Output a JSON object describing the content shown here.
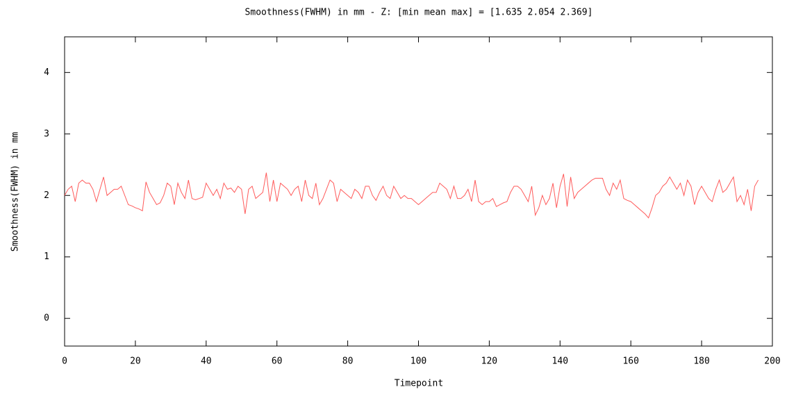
{
  "chart_data": {
    "type": "line",
    "title": "Smoothness(FWHM) in mm - Z: [min mean max] = [1.635 2.054 2.369]",
    "x_label": "Timepoint",
    "y_label": "Smoothness(FWHM) in mm",
    "xlim": [
      0,
      200
    ],
    "xticks": [
      0,
      20,
      40,
      60,
      80,
      100,
      120,
      140,
      160,
      180,
      200
    ],
    "ylim": [
      -0.45,
      4.58
    ],
    "yticks": [
      0,
      1,
      2,
      3,
      4
    ],
    "grid": false,
    "series": [
      {
        "name": "Z",
        "color": "#ff5a5a",
        "x": [
          0,
          1,
          2,
          3,
          4,
          5,
          6,
          7,
          8,
          9,
          10,
          11,
          12,
          13,
          14,
          15,
          16,
          17,
          18,
          19,
          20,
          21,
          22,
          23,
          24,
          25,
          26,
          27,
          28,
          29,
          30,
          31,
          32,
          33,
          34,
          35,
          36,
          37,
          38,
          39,
          40,
          41,
          42,
          43,
          44,
          45,
          46,
          47,
          48,
          49,
          50,
          51,
          52,
          53,
          54,
          55,
          56,
          57,
          58,
          59,
          60,
          61,
          62,
          63,
          64,
          65,
          66,
          67,
          68,
          69,
          70,
          71,
          72,
          73,
          74,
          75,
          76,
          77,
          78,
          79,
          80,
          81,
          82,
          83,
          84,
          85,
          86,
          87,
          88,
          89,
          90,
          91,
          92,
          93,
          94,
          95,
          96,
          97,
          98,
          99,
          100,
          101,
          102,
          103,
          104,
          105,
          106,
          107,
          108,
          109,
          110,
          111,
          112,
          113,
          114,
          115,
          116,
          117,
          118,
          119,
          120,
          121,
          122,
          123,
          124,
          125,
          126,
          127,
          128,
          129,
          130,
          131,
          132,
          133,
          134,
          135,
          136,
          137,
          138,
          139,
          140,
          141,
          142,
          143,
          144,
          145,
          146,
          147,
          148,
          149,
          150,
          151,
          152,
          153,
          154,
          155,
          156,
          157,
          158,
          159,
          160,
          161,
          162,
          163,
          164,
          165,
          166,
          167,
          168,
          169,
          170,
          171,
          172,
          173,
          174,
          175,
          176,
          177,
          178,
          179,
          180,
          181,
          182,
          183,
          184,
          185,
          186,
          187,
          188,
          189,
          190,
          191,
          192,
          193,
          194,
          195,
          196
        ],
        "values": [
          2.0,
          2.1,
          2.15,
          1.9,
          2.2,
          2.25,
          2.2,
          2.2,
          2.1,
          1.9,
          2.1,
          2.3,
          2.0,
          2.05,
          2.1,
          2.1,
          2.15,
          2.0,
          1.85,
          1.83,
          1.8,
          1.78,
          1.75,
          2.22,
          2.05,
          1.95,
          1.85,
          1.88,
          2.0,
          2.2,
          2.15,
          1.85,
          2.2,
          2.05,
          1.95,
          2.25,
          1.95,
          1.93,
          1.95,
          1.97,
          2.2,
          2.1,
          2.0,
          2.1,
          1.95,
          2.2,
          2.1,
          2.12,
          2.05,
          2.15,
          2.1,
          1.7,
          2.1,
          2.15,
          1.95,
          2.0,
          2.05,
          2.37,
          1.9,
          2.25,
          1.9,
          2.2,
          2.15,
          2.1,
          2.0,
          2.1,
          2.15,
          1.9,
          2.25,
          2.0,
          1.95,
          2.2,
          1.85,
          1.95,
          2.1,
          2.25,
          2.2,
          1.9,
          2.1,
          2.05,
          2.0,
          1.95,
          2.1,
          2.05,
          1.95,
          2.15,
          2.15,
          2.0,
          1.92,
          2.05,
          2.15,
          2.0,
          1.95,
          2.15,
          2.05,
          1.95,
          2.0,
          1.95,
          1.95,
          1.9,
          1.85,
          1.9,
          1.95,
          2.0,
          2.05,
          2.05,
          2.2,
          2.15,
          2.1,
          1.95,
          2.15,
          1.95,
          1.95,
          2.0,
          2.1,
          1.9,
          2.25,
          1.9,
          1.85,
          1.9,
          1.9,
          1.95,
          1.82,
          1.85,
          1.88,
          1.9,
          2.05,
          2.15,
          2.15,
          2.1,
          2.0,
          1.9,
          2.15,
          1.68,
          1.8,
          2.0,
          1.85,
          1.95,
          2.2,
          1.8,
          2.15,
          2.35,
          1.82,
          2.3,
          1.95,
          2.05,
          2.1,
          2.15,
          2.2,
          2.25,
          2.28,
          2.28,
          2.28,
          2.1,
          2.0,
          2.2,
          2.1,
          2.25,
          1.95,
          1.92,
          1.9,
          1.85,
          1.8,
          1.75,
          1.7,
          1.635,
          1.8,
          2.0,
          2.05,
          2.15,
          2.2,
          2.3,
          2.2,
          2.1,
          2.2,
          2.0,
          2.25,
          2.15,
          1.85,
          2.05,
          2.15,
          2.05,
          1.95,
          1.9,
          2.1,
          2.25,
          2.05,
          2.1,
          2.2,
          2.3,
          1.9,
          2.0,
          1.85,
          2.1,
          1.75,
          2.15,
          2.25
        ]
      }
    ]
  }
}
